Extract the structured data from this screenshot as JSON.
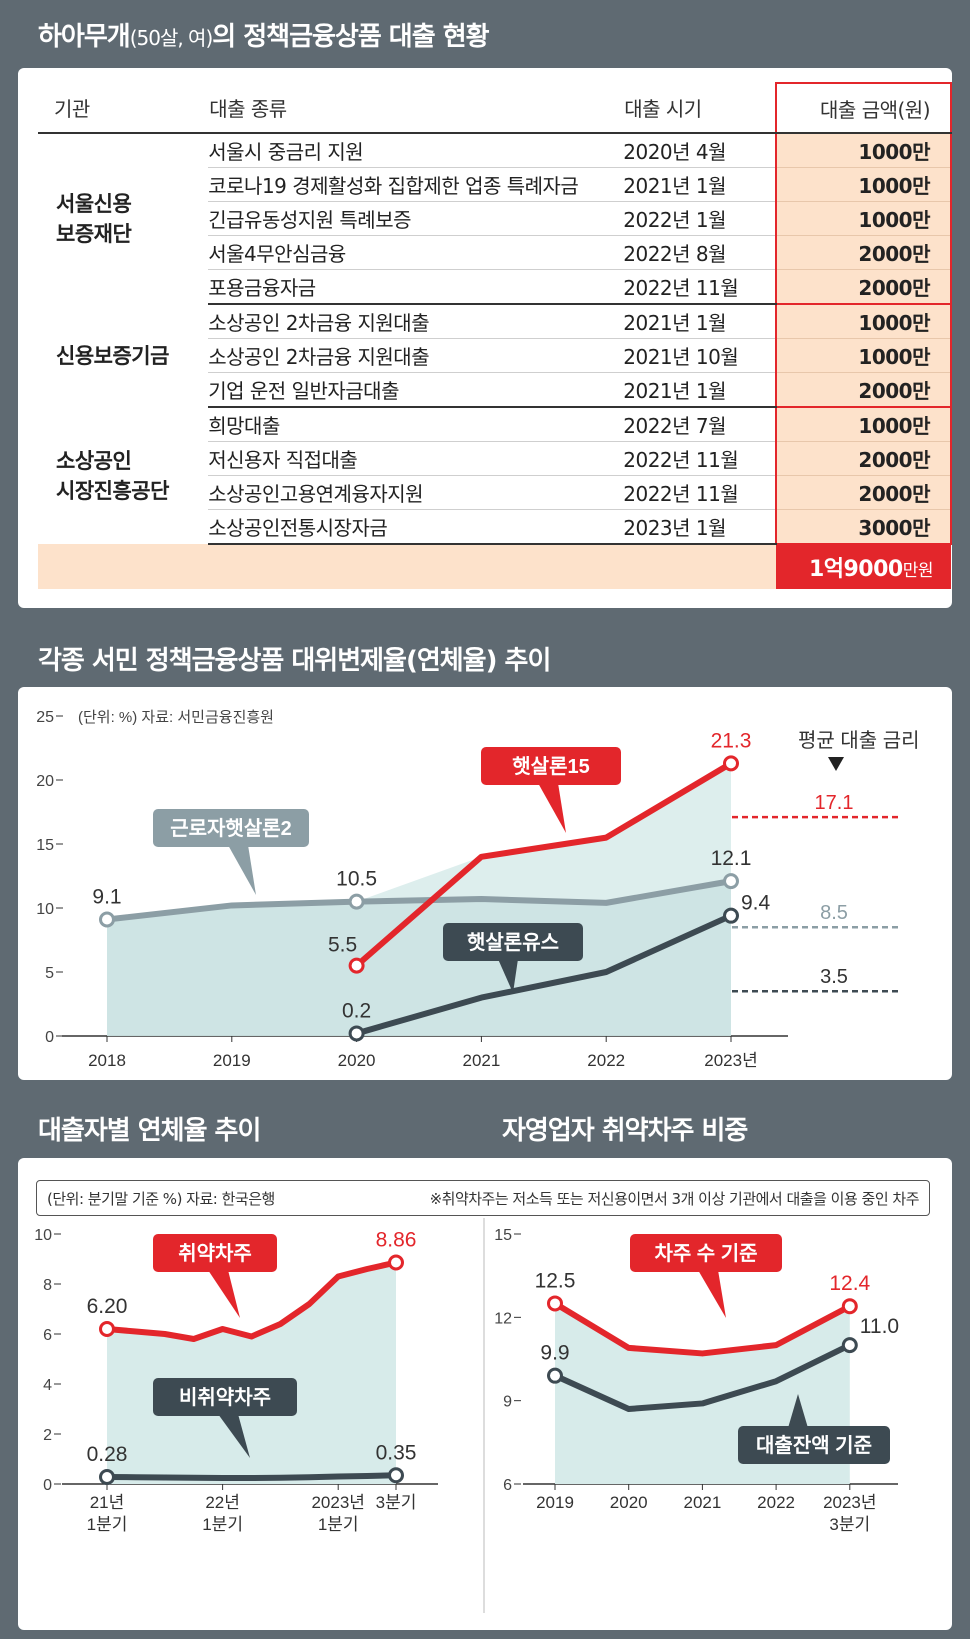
{
  "loan_section": {
    "title_main": "하아무개",
    "title_small": "(50살, 여)",
    "title_rest": "의 정책금융상품 대출 현황",
    "headers": {
      "institution": "기관",
      "type": "대출 종류",
      "date": "대출 시기",
      "amount": "대출 금액(원)"
    },
    "groups": [
      {
        "institution": [
          "서울신용",
          "보증재단"
        ],
        "rows": [
          {
            "type": "서울시 중금리 지원",
            "date": "2020년 4월",
            "amount": "1000만"
          },
          {
            "type": "코로나19 경제활성화 집합제한 업종 특례자금",
            "date": "2021년 1월",
            "amount": "1000만"
          },
          {
            "type": "긴급유동성지원 특례보증",
            "date": "2022년 1월",
            "amount": "1000만"
          },
          {
            "type": "서울4무안심금융",
            "date": "2022년 8월",
            "amount": "2000만"
          },
          {
            "type": "포용금융자금",
            "date": "2022년 11월",
            "amount": "2000만"
          }
        ]
      },
      {
        "institution": [
          "신용보증기금"
        ],
        "rows": [
          {
            "type": "소상공인 2차금융 지원대출",
            "date": "2021년 1월",
            "amount": "1000만"
          },
          {
            "type": "소상공인 2차금융 지원대출",
            "date": "2021년 10월",
            "amount": "1000만"
          },
          {
            "type": "기업 운전 일반자금대출",
            "date": "2021년 1월",
            "amount": "2000만"
          }
        ]
      },
      {
        "institution": [
          "소상공인",
          "시장진흥공단"
        ],
        "rows": [
          {
            "type": "희망대출",
            "date": "2022년 7월",
            "amount": "1000만"
          },
          {
            "type": "저신용자 직접대출",
            "date": "2022년 11월",
            "amount": "2000만"
          },
          {
            "type": "소상공인고용연계융자지원",
            "date": "2022년 11월",
            "amount": "2000만"
          },
          {
            "type": "소상공인전통시장자금",
            "date": "2023년 1월",
            "amount": "3000만"
          }
        ]
      }
    ],
    "total": {
      "number": "1억9000",
      "unit": "만원"
    }
  },
  "chart1_title": "각종 서민 정책금융상품 대위변제율(연체율) 추이",
  "chart2_title": "대출자별 연체율 추이",
  "chart3_title": "자영업자 취약차주 비중",
  "chart_data": [
    {
      "type": "line",
      "note": "(단위: %) 자료: 서민금융진흥원",
      "x": [
        "2018",
        "2019",
        "2020",
        "2021",
        "2022",
        "2023년"
      ],
      "ylim": [
        0,
        25
      ],
      "yticks": [
        "0",
        "5",
        "10",
        "15",
        "20",
        "25"
      ],
      "series": [
        {
          "name": "근로자햇살론2",
          "values": [
            9.1,
            10.2,
            10.5,
            10.7,
            10.4,
            12.1
          ],
          "labels": {
            "0": "9.1",
            "2": "10.5",
            "5": "12.1"
          },
          "color": "#8c9ea5"
        },
        {
          "name": "햇살론15",
          "values": [
            null,
            null,
            5.5,
            14.0,
            15.5,
            21.3
          ],
          "labels": {
            "2": "5.5",
            "5": "21.3"
          },
          "color": "#e3262b"
        },
        {
          "name": "햇살론유스",
          "values": [
            null,
            null,
            0.2,
            3.0,
            5.0,
            9.4
          ],
          "labels": {
            "2": "0.2",
            "5": "9.4"
          },
          "color": "#3d4a52"
        }
      ],
      "avg_rate": {
        "label": "평균 대출 금리",
        "items": [
          {
            "series": "햇살론15",
            "value": 17.1,
            "label": "17.1",
            "color": "#e3262b"
          },
          {
            "series": "근로자햇살론2",
            "value": 8.5,
            "label": "8.5",
            "color": "#8c9ea5"
          },
          {
            "series": "햇살론유스",
            "value": 3.5,
            "label": "3.5",
            "color": "#3d4a52"
          }
        ]
      }
    },
    {
      "type": "line",
      "note": "(단위: 분기말 기준 %) 자료: 한국은행",
      "x": [
        "21년 1분기",
        "",
        "",
        "",
        "22년 1분기",
        "",
        "",
        "",
        "2023년 1분기",
        "",
        "3분기"
      ],
      "xticklabels": [
        [
          "21년",
          "1분기"
        ],
        [
          "22년",
          "1분기"
        ],
        [
          "2023년",
          "1분기"
        ],
        [
          "3분기"
        ]
      ],
      "ylim": [
        0,
        10
      ],
      "yticks": [
        "0",
        "2",
        "4",
        "6",
        "8",
        "10"
      ],
      "series": [
        {
          "name": "취약차주",
          "values": [
            6.2,
            6.1,
            6.0,
            5.8,
            6.2,
            5.9,
            6.4,
            7.2,
            8.3,
            8.6,
            8.86
          ],
          "labels": {
            "0": "6.20",
            "10": "8.86"
          },
          "color": "#e3262b"
        },
        {
          "name": "비취약차주",
          "values": [
            0.28,
            0.27,
            0.26,
            0.25,
            0.24,
            0.24,
            0.25,
            0.27,
            0.3,
            0.32,
            0.35
          ],
          "labels": {
            "0": "0.28",
            "10": "0.35"
          },
          "color": "#3d4a52"
        }
      ]
    },
    {
      "type": "line",
      "note": "※취약차주는 저소득 또는 저신용이면서 3개 이상 기관에서 대출을 이용 중인 차주",
      "x": [
        "2019",
        "2020",
        "2021",
        "2022",
        "2023년 3분기"
      ],
      "xticklabels": [
        [
          "2019"
        ],
        [
          "2020"
        ],
        [
          "2021"
        ],
        [
          "2022"
        ],
        [
          "2023년",
          "3분기"
        ]
      ],
      "ylim": [
        6,
        15
      ],
      "yticks": [
        "6",
        "9",
        "12",
        "15"
      ],
      "series": [
        {
          "name": "차주 수 기준",
          "values": [
            12.5,
            10.9,
            10.7,
            11.0,
            12.4
          ],
          "labels": {
            "0": "12.5",
            "4": "12.4"
          },
          "color": "#e3262b"
        },
        {
          "name": "대출잔액 기준",
          "values": [
            9.9,
            8.7,
            8.9,
            9.7,
            11.0
          ],
          "labels": {
            "0": "9.9",
            "4": "11.0"
          },
          "color": "#3d4a52"
        }
      ]
    }
  ]
}
